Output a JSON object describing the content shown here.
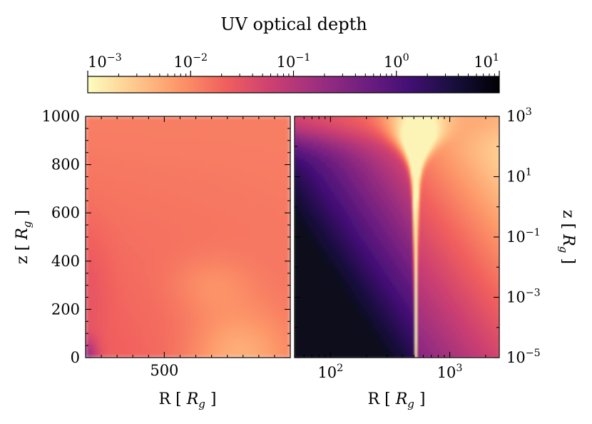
{
  "chart_data": [
    {
      "type": "colorbar",
      "title": "UV optical depth",
      "scale": "log",
      "colormap": "magma_r",
      "range": [
        0.001,
        10
      ],
      "ticks": [
        {
          "base": "10",
          "exp": "−3"
        },
        {
          "base": "10",
          "exp": "−2"
        },
        {
          "base": "10",
          "exp": "−1"
        },
        {
          "base": "10",
          "exp": "0"
        },
        {
          "base": "10",
          "exp": "1"
        }
      ],
      "colors": [
        "#fcfdbf",
        "#feca8d",
        "#fd9668",
        "#f1605d",
        "#cd4071",
        "#9e2f7f",
        "#721f81",
        "#440f76",
        "#180f3d",
        "#000004"
      ]
    },
    {
      "type": "heatmap",
      "name": "left-panel",
      "xscale": "linear",
      "yscale": "linear",
      "xlim": [
        250,
        900
      ],
      "ylim": [
        0,
        1000
      ],
      "xlabel": {
        "main": "R [ ",
        "sym": "R",
        "sub": "g",
        "tail": " ]"
      },
      "ylabel": {
        "main": "z [ ",
        "sym": "R",
        "sub": "g",
        "tail": " ]"
      },
      "xticks": [
        {
          "value": 500,
          "label": "500"
        }
      ],
      "yticks": [
        {
          "value": 0,
          "label": "0"
        },
        {
          "value": 200,
          "label": "200"
        },
        {
          "value": 400,
          "label": "400"
        },
        {
          "value": 600,
          "label": "600"
        },
        {
          "value": 800,
          "label": "800"
        },
        {
          "value": 1000,
          "label": "1000"
        }
      ]
    },
    {
      "type": "heatmap",
      "name": "right-panel",
      "xscale": "log",
      "yscale": "log",
      "xlim": [
        50,
        2600
      ],
      "ylim": [
        1e-05,
        1000
      ],
      "disk_radius": 520,
      "xlabel": {
        "main": "R [ ",
        "sym": "R",
        "sub": "g",
        "tail": " ]"
      },
      "ylabel": {
        "main": "z [ ",
        "sym": "R",
        "sub": "g",
        "tail": " ]"
      },
      "xticks": [
        {
          "value": 100,
          "base": "10",
          "exp": "2"
        },
        {
          "value": 1000,
          "base": "10",
          "exp": "3"
        }
      ],
      "yticks": [
        {
          "value": 1e-05,
          "base": "10",
          "exp": "−5"
        },
        {
          "value": 0.001,
          "base": "10",
          "exp": "−3"
        },
        {
          "value": 0.1,
          "base": "10",
          "exp": "−1"
        },
        {
          "value": 10,
          "base": "10",
          "exp": "1"
        },
        {
          "value": 1000,
          "base": "10",
          "exp": "3"
        }
      ]
    }
  ]
}
